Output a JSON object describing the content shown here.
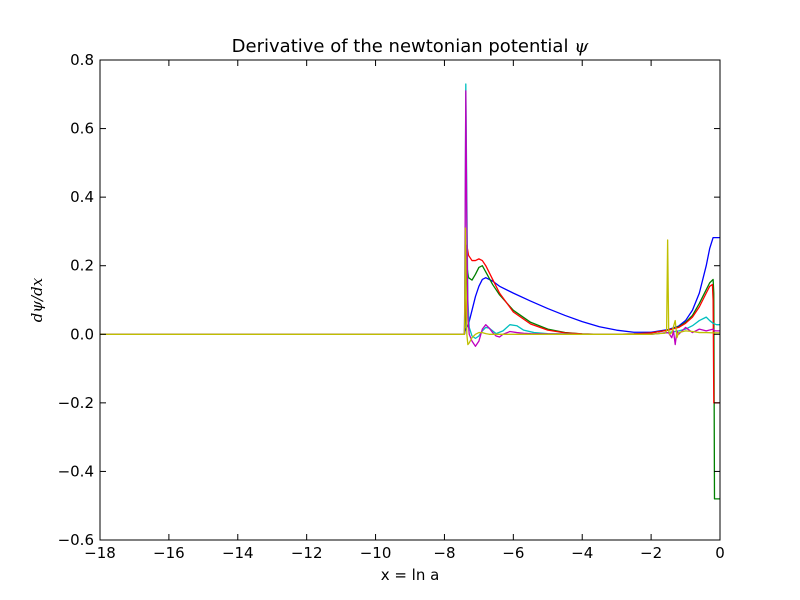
{
  "chart_data": {
    "type": "line",
    "title": "Derivative of the newtonian potential",
    "title_symbol": "ψ",
    "xlabel": "x = ln a",
    "ylabel": "dψ/dx",
    "xlim": [
      -18,
      0
    ],
    "ylim": [
      -0.6,
      0.8
    ],
    "xticks": [
      -18,
      -16,
      -14,
      -12,
      -10,
      -8,
      -6,
      -4,
      -2,
      0
    ],
    "xtick_labels": [
      "−18",
      "−16",
      "−14",
      "−12",
      "−10",
      "−8",
      "−6",
      "−4",
      "−2",
      "0"
    ],
    "yticks": [
      -0.6,
      -0.4,
      -0.2,
      0.0,
      0.2,
      0.4,
      0.6,
      0.8
    ],
    "ytick_labels": [
      "−0.6",
      "−0.4",
      "−0.2",
      "0.0",
      "0.2",
      "0.4",
      "0.6",
      "0.8"
    ],
    "grid": false,
    "series": [
      {
        "color": "#0000ff",
        "x": [
          -18,
          -7.42,
          -7.4,
          -7.3,
          -7.2,
          -7.1,
          -7.0,
          -6.9,
          -6.8,
          -6.6,
          -6.4,
          -6.0,
          -5.5,
          -5.0,
          -4.5,
          -4.0,
          -3.5,
          -3.0,
          -2.5,
          -2.0,
          -1.5,
          -1.2,
          -1.0,
          -0.8,
          -0.6,
          -0.4,
          -0.3,
          -0.2,
          0
        ],
        "y": [
          0,
          0,
          0.01,
          0.03,
          0.07,
          0.11,
          0.14,
          0.16,
          0.165,
          0.155,
          0.14,
          0.12,
          0.097,
          0.075,
          0.055,
          0.037,
          0.022,
          0.012,
          0.006,
          0.006,
          0.014,
          0.024,
          0.04,
          0.07,
          0.12,
          0.2,
          0.25,
          0.282,
          0.282
        ]
      },
      {
        "color": "#008000",
        "x": [
          -18,
          -7.42,
          -7.4,
          -7.35,
          -7.3,
          -7.2,
          -7.1,
          -7.0,
          -6.9,
          -6.8,
          -6.6,
          -6.4,
          -6.0,
          -5.5,
          -5.0,
          -4.5,
          -4.0,
          -3.5,
          -3.0,
          -2.5,
          -2.0,
          -1.5,
          -1.2,
          -1.0,
          -0.8,
          -0.6,
          -0.4,
          -0.3,
          -0.2,
          -0.18,
          -0.16,
          0
        ],
        "y": [
          0,
          0,
          0.02,
          0.2,
          0.165,
          0.158,
          0.175,
          0.195,
          0.2,
          0.182,
          0.145,
          0.115,
          0.07,
          0.035,
          0.015,
          0.005,
          0.001,
          0,
          0,
          0.001,
          0.004,
          0.012,
          0.022,
          0.035,
          0.055,
          0.09,
          0.13,
          0.15,
          0.16,
          0.12,
          -0.48,
          -0.48
        ]
      },
      {
        "color": "#ff0000",
        "x": [
          -18,
          -7.42,
          -7.4,
          -7.35,
          -7.3,
          -7.2,
          -7.1,
          -7.0,
          -6.9,
          -6.8,
          -6.6,
          -6.4,
          -6.0,
          -5.5,
          -5.0,
          -4.5,
          -4.0,
          -3.5,
          -3.0,
          -2.5,
          -2.0,
          -1.5,
          -1.2,
          -1.0,
          -0.8,
          -0.6,
          -0.4,
          -0.3,
          -0.22,
          -0.2,
          -0.18,
          0
        ],
        "y": [
          0,
          0,
          0.05,
          0.26,
          0.23,
          0.215,
          0.215,
          0.22,
          0.215,
          0.2,
          0.16,
          0.12,
          0.065,
          0.03,
          0.012,
          0.004,
          0.001,
          0,
          0,
          0.001,
          0.004,
          0.012,
          0.02,
          0.032,
          0.05,
          0.08,
          0.12,
          0.14,
          0.145,
          0.1,
          -0.2,
          -0.2
        ]
      },
      {
        "color": "#00bfbf",
        "x": [
          -18,
          -7.42,
          -7.41,
          -7.38,
          -7.35,
          -7.32,
          -7.28,
          -7.2,
          -7.1,
          -7.0,
          -6.9,
          -6.8,
          -6.7,
          -6.6,
          -6.5,
          -6.3,
          -6.1,
          -5.9,
          -5.7,
          -5.4,
          -5.0,
          -4.5,
          -4.0,
          -3.0,
          -2.0,
          -1.5,
          -1.2,
          -1.0,
          -0.8,
          -0.6,
          -0.4,
          -0.3,
          -0.2,
          -0.1,
          0
        ],
        "y": [
          0,
          0,
          0.1,
          0.73,
          0.4,
          0.1,
          0.02,
          -0.005,
          -0.012,
          -0.005,
          0.01,
          0.02,
          0.018,
          0.01,
          0.002,
          0.01,
          0.028,
          0.025,
          0.012,
          0.005,
          0.002,
          0.001,
          0,
          0,
          0,
          0.005,
          0.01,
          0.015,
          0.025,
          0.04,
          0.05,
          0.04,
          0.032,
          0.028,
          0.028
        ]
      },
      {
        "color": "#bf00bf",
        "x": [
          -18,
          -7.42,
          -7.41,
          -7.38,
          -7.35,
          -7.32,
          -7.28,
          -7.2,
          -7.1,
          -7.0,
          -6.9,
          -6.8,
          -6.7,
          -6.6,
          -6.5,
          -6.4,
          -6.3,
          -6.1,
          -5.9,
          -5.7,
          -5.5,
          -5.0,
          -4.0,
          -3.0,
          -2.0,
          -1.5,
          -1.4,
          -1.35,
          -1.3,
          -1.25,
          -1.2,
          -1.0,
          -0.8,
          -0.6,
          -0.4,
          -0.2,
          -0.15,
          0
        ],
        "y": [
          0,
          0,
          0.1,
          0.71,
          0.3,
          0.05,
          0,
          -0.02,
          -0.035,
          -0.02,
          0.015,
          0.028,
          0.018,
          0.005,
          -0.005,
          -0.008,
          0,
          0.008,
          0.005,
          0.003,
          0.002,
          0.001,
          0,
          0,
          0,
          0.005,
          -0.01,
          0.01,
          -0.03,
          0.01,
          0,
          0.02,
          0.005,
          0.015,
          0.01,
          0.015,
          0.01,
          0.01
        ]
      },
      {
        "color": "#bfbf00",
        "x": [
          -18,
          -7.42,
          -7.41,
          -7.39,
          -7.37,
          -7.35,
          -7.32,
          -7.28,
          -7.2,
          -7.1,
          -7.0,
          -6.9,
          -6.8,
          -6.7,
          -6.6,
          -6.5,
          -6.3,
          -6.0,
          -5.0,
          -4.0,
          -3.0,
          -2.0,
          -1.8,
          -1.6,
          -1.55,
          -1.52,
          -1.49,
          -1.46,
          -1.4,
          -1.3,
          -1.25,
          -1.2,
          -1.0,
          -0.8,
          -0.6,
          -0.4,
          -0.2,
          0
        ],
        "y": [
          0,
          0,
          0.05,
          0.31,
          0.12,
          0,
          -0.03,
          -0.025,
          -0.01,
          0,
          0.005,
          0.005,
          0.002,
          0,
          0,
          0,
          0,
          0,
          0,
          0,
          0,
          0,
          0.002,
          0.003,
          0.01,
          0.275,
          0.01,
          0,
          0.005,
          0.04,
          -0.01,
          0.005,
          0.01,
          0.008,
          0.005,
          0.005,
          0.004,
          0.004
        ]
      }
    ]
  }
}
